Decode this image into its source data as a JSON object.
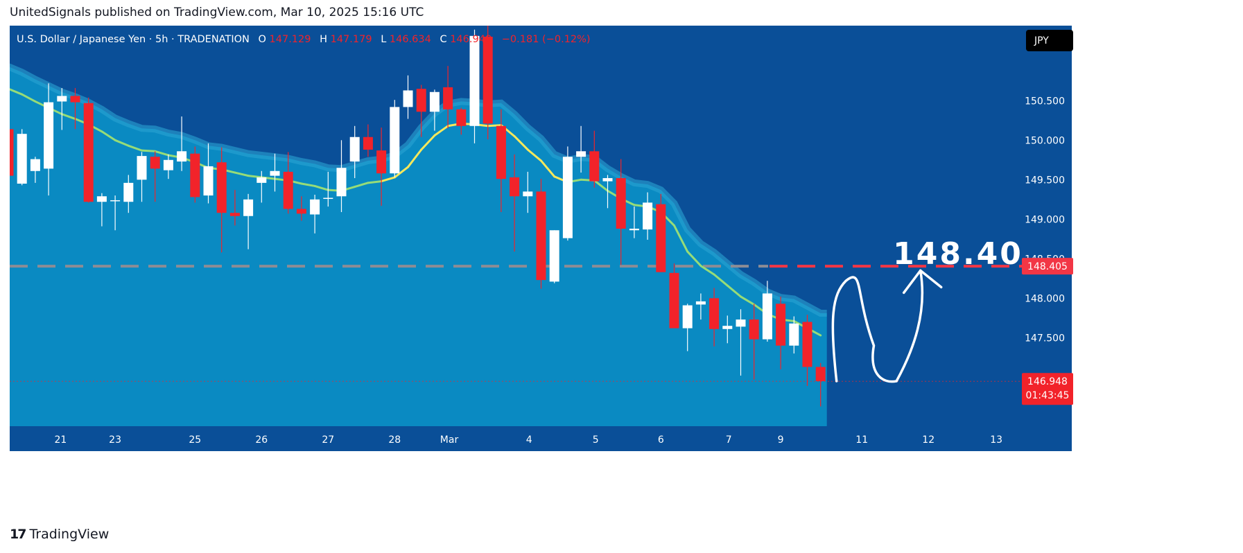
{
  "header": {
    "published": "UnitedSignals published on TradingView.com, Mar 10, 2025 15:16 UTC"
  },
  "footer": {
    "logo_icon": "tradingview-logo-icon",
    "logo_text": "TradingView"
  },
  "legend": {
    "symbol": "U.S. Dollar / Japanese Yen · 5h · TRADENATION",
    "o_label": "O",
    "o_value": "147.129",
    "h_label": "H",
    "h_value": "147.179",
    "l_label": "L",
    "l_value": "146.634",
    "c_label": "C",
    "c_value": "146.948",
    "change": "−0.181 (−0.12%)"
  },
  "currency_button": "JPY",
  "target_annotation": "148.40",
  "colors": {
    "background": "#0a4f98",
    "fill": "#0a8ac2",
    "band": "#2aa3d2",
    "ma_green": "#96dc78",
    "ma_yellow": "#f5e85c",
    "up_candle": "#ffffff",
    "down_candle": "#f2232a",
    "level_line": "#f23645",
    "axis_text": "#ffffff",
    "header_text": "#131722"
  },
  "chart_data": {
    "type": "candlestick",
    "symbol": "U.S. Dollar / Japanese Yen",
    "interval": "5h",
    "ylim": [
      146.38,
      151.45
    ],
    "y_ticks": [
      "150.500",
      "150.000",
      "149.500",
      "149.000",
      "148.500",
      "148.000",
      "147.500"
    ],
    "x_ticks": [
      "21",
      "23",
      "25",
      "26",
      "27",
      "28",
      "Mar",
      "4",
      "5",
      "6",
      "7",
      "9",
      "11",
      "12",
      "13"
    ],
    "price_labels": [
      {
        "value": 148.405,
        "text": "148.405",
        "color": "#f23645"
      },
      {
        "value": 146.948,
        "text": "146.948",
        "countdown": "01:43:45",
        "color": "#f2232a"
      }
    ],
    "horizontal_level": 148.405,
    "candles": [
      {
        "o": 150.14,
        "h": 150.24,
        "l": 149.56,
        "c": 149.55
      },
      {
        "o": 149.45,
        "h": 150.14,
        "l": 149.43,
        "c": 150.08
      },
      {
        "o": 149.61,
        "h": 149.79,
        "l": 149.46,
        "c": 149.76
      },
      {
        "o": 149.64,
        "h": 150.72,
        "l": 149.3,
        "c": 150.48
      },
      {
        "o": 150.49,
        "h": 150.66,
        "l": 150.13,
        "c": 150.56
      },
      {
        "o": 150.56,
        "h": 150.66,
        "l": 150.14,
        "c": 150.48
      },
      {
        "o": 150.47,
        "h": 150.54,
        "l": 149.21,
        "c": 149.22
      },
      {
        "o": 149.22,
        "h": 149.33,
        "l": 148.91,
        "c": 149.29
      },
      {
        "o": 149.23,
        "h": 149.3,
        "l": 148.86,
        "c": 149.24
      },
      {
        "o": 149.22,
        "h": 149.56,
        "l": 149.08,
        "c": 149.46
      },
      {
        "o": 149.5,
        "h": 149.85,
        "l": 149.22,
        "c": 149.8
      },
      {
        "o": 149.79,
        "h": 149.86,
        "l": 149.22,
        "c": 149.64
      },
      {
        "o": 149.62,
        "h": 149.82,
        "l": 149.51,
        "c": 149.75
      },
      {
        "o": 149.73,
        "h": 150.3,
        "l": 149.61,
        "c": 149.86
      },
      {
        "o": 149.83,
        "h": 149.92,
        "l": 149.21,
        "c": 149.28
      },
      {
        "o": 149.3,
        "h": 149.96,
        "l": 149.2,
        "c": 149.67
      },
      {
        "o": 149.72,
        "h": 149.91,
        "l": 148.58,
        "c": 149.08
      },
      {
        "o": 149.08,
        "h": 149.37,
        "l": 148.92,
        "c": 149.04
      },
      {
        "o": 149.04,
        "h": 149.32,
        "l": 148.62,
        "c": 149.25
      },
      {
        "o": 149.46,
        "h": 149.61,
        "l": 149.21,
        "c": 149.53
      },
      {
        "o": 149.55,
        "h": 149.83,
        "l": 149.35,
        "c": 149.61
      },
      {
        "o": 149.6,
        "h": 149.85,
        "l": 149.07,
        "c": 149.13
      },
      {
        "o": 149.13,
        "h": 149.29,
        "l": 148.98,
        "c": 149.07
      },
      {
        "o": 149.06,
        "h": 149.31,
        "l": 148.82,
        "c": 149.25
      },
      {
        "o": 149.26,
        "h": 149.6,
        "l": 149.16,
        "c": 149.27
      },
      {
        "o": 149.29,
        "h": 150.0,
        "l": 149.09,
        "c": 149.65
      },
      {
        "o": 149.73,
        "h": 150.18,
        "l": 149.52,
        "c": 150.04
      },
      {
        "o": 150.04,
        "h": 150.2,
        "l": 149.79,
        "c": 149.88
      },
      {
        "o": 149.87,
        "h": 150.16,
        "l": 149.17,
        "c": 149.58
      },
      {
        "o": 149.58,
        "h": 150.51,
        "l": 149.53,
        "c": 150.42
      },
      {
        "o": 150.42,
        "h": 150.82,
        "l": 150.27,
        "c": 150.63
      },
      {
        "o": 150.65,
        "h": 150.7,
        "l": 150.04,
        "c": 150.36
      },
      {
        "o": 150.36,
        "h": 150.64,
        "l": 150.12,
        "c": 150.61
      },
      {
        "o": 150.67,
        "h": 150.94,
        "l": 150.15,
        "c": 150.39
      },
      {
        "o": 150.39,
        "h": 150.41,
        "l": 150.07,
        "c": 150.18
      },
      {
        "o": 150.18,
        "h": 151.4,
        "l": 149.96,
        "c": 151.32
      },
      {
        "o": 151.31,
        "h": 151.48,
        "l": 150.01,
        "c": 150.21
      },
      {
        "o": 150.18,
        "h": 150.39,
        "l": 149.09,
        "c": 149.51
      },
      {
        "o": 149.53,
        "h": 149.82,
        "l": 148.59,
        "c": 149.29
      },
      {
        "o": 149.29,
        "h": 149.6,
        "l": 149.08,
        "c": 149.35
      },
      {
        "o": 149.35,
        "h": 149.51,
        "l": 148.12,
        "c": 148.23
      },
      {
        "o": 148.21,
        "h": 148.86,
        "l": 148.19,
        "c": 148.86
      },
      {
        "o": 148.76,
        "h": 149.92,
        "l": 148.73,
        "c": 149.79
      },
      {
        "o": 149.79,
        "h": 150.18,
        "l": 149.59,
        "c": 149.86
      },
      {
        "o": 149.86,
        "h": 150.12,
        "l": 149.4,
        "c": 149.48
      },
      {
        "o": 149.48,
        "h": 149.56,
        "l": 149.14,
        "c": 149.52
      },
      {
        "o": 149.52,
        "h": 149.76,
        "l": 148.42,
        "c": 148.88
      },
      {
        "o": 148.86,
        "h": 149.16,
        "l": 148.76,
        "c": 148.88
      },
      {
        "o": 148.87,
        "h": 149.34,
        "l": 148.74,
        "c": 149.21
      },
      {
        "o": 149.19,
        "h": 149.32,
        "l": 148.33,
        "c": 148.33
      },
      {
        "o": 148.32,
        "h": 148.44,
        "l": 147.66,
        "c": 147.62
      },
      {
        "o": 147.62,
        "h": 147.93,
        "l": 147.33,
        "c": 147.91
      },
      {
        "o": 147.92,
        "h": 148.06,
        "l": 147.73,
        "c": 147.96
      },
      {
        "o": 148.0,
        "h": 148.13,
        "l": 147.39,
        "c": 147.61
      },
      {
        "o": 147.61,
        "h": 147.78,
        "l": 147.43,
        "c": 147.65
      },
      {
        "o": 147.64,
        "h": 147.86,
        "l": 147.02,
        "c": 147.73
      },
      {
        "o": 147.73,
        "h": 147.93,
        "l": 146.97,
        "c": 147.48
      },
      {
        "o": 147.48,
        "h": 148.22,
        "l": 147.45,
        "c": 148.06
      },
      {
        "o": 147.93,
        "h": 148.02,
        "l": 147.1,
        "c": 147.4
      },
      {
        "o": 147.4,
        "h": 147.77,
        "l": 147.3,
        "c": 147.68
      },
      {
        "o": 147.7,
        "h": 147.79,
        "l": 146.89,
        "c": 147.13
      },
      {
        "o": 147.13,
        "h": 147.18,
        "l": 146.63,
        "c": 146.95
      }
    ],
    "moving_average": [
      150.65,
      150.58,
      150.49,
      150.41,
      150.33,
      150.27,
      150.2,
      150.11,
      150.0,
      149.93,
      149.87,
      149.86,
      149.81,
      149.78,
      149.72,
      149.65,
      149.63,
      149.59,
      149.55,
      149.53,
      149.51,
      149.49,
      149.45,
      149.42,
      149.37,
      149.36,
      149.41,
      149.46,
      149.48,
      149.53,
      149.66,
      149.88,
      150.06,
      150.18,
      150.21,
      150.2,
      150.18,
      150.19,
      150.05,
      149.88,
      149.74,
      149.54,
      149.47,
      149.5,
      149.49,
      149.36,
      149.26,
      149.18,
      149.16,
      149.09,
      148.92,
      148.59,
      148.41,
      148.3,
      148.16,
      148.02,
      147.92,
      147.8,
      147.73,
      147.71,
      147.62,
      147.53
    ],
    "projection_path": [
      [
        62.2,
        146.95
      ],
      [
        62.9,
        148.22
      ],
      [
        63.6,
        148.05
      ],
      [
        65.0,
        147.4
      ],
      [
        66.7,
        146.95
      ],
      [
        68.0,
        147.35
      ],
      [
        68.5,
        148.35
      ],
      [
        69.0,
        147.92
      ]
    ]
  }
}
